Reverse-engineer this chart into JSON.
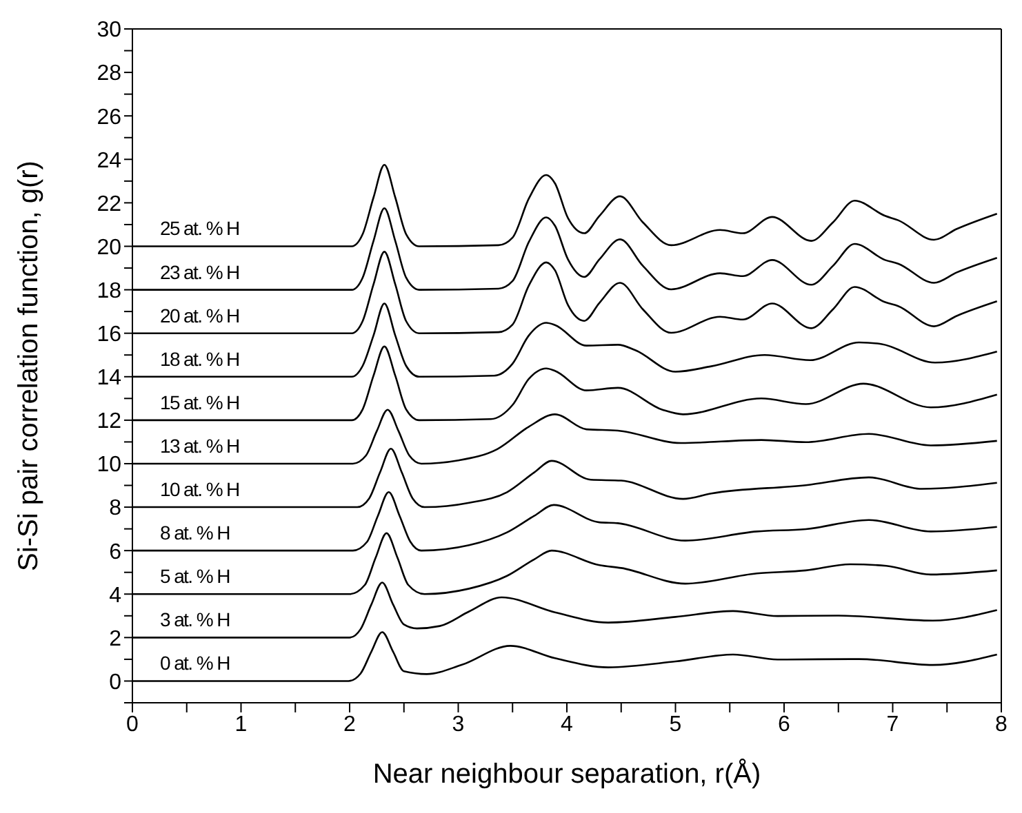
{
  "chart_data": {
    "type": "line",
    "xlabel": "Near neighbour separation, r(Å)",
    "ylabel": "Si-Si pair correlation function, g(r)",
    "xlim": [
      0,
      8
    ],
    "xticks": [
      0,
      {
        "value": 0.5,
        "label": null
      },
      1,
      {
        "value": 1.5,
        "label": null
      },
      2,
      {
        "value": 2.5,
        "label": null
      },
      3,
      {
        "value": 3.5,
        "label": null
      },
      4,
      {
        "value": 4.5,
        "label": null
      },
      5,
      {
        "value": 5.5,
        "label": null
      },
      6,
      {
        "value": 6.5,
        "label": null
      },
      7,
      {
        "value": 7.5,
        "label": null
      },
      8
    ],
    "ylim": [
      -1,
      30
    ],
    "yticks": [
      {
        "value": -1,
        "label": null
      },
      0,
      {
        "value": 1,
        "label": null
      },
      2,
      {
        "value": 3,
        "label": null
      },
      4,
      {
        "value": 5,
        "label": null
      },
      6,
      {
        "value": 7,
        "label": null
      },
      8,
      {
        "value": 9,
        "label": null
      },
      10,
      {
        "value": 11,
        "label": null
      },
      12,
      {
        "value": 13,
        "label": null
      },
      14,
      {
        "value": 15,
        "label": null
      },
      16,
      {
        "value": 17,
        "label": null
      },
      18,
      {
        "value": 19,
        "label": null
      },
      20,
      {
        "value": 21,
        "label": null
      },
      22,
      {
        "value": 23,
        "label": null
      },
      24,
      {
        "value": 25,
        "label": null
      },
      26,
      {
        "value": 27,
        "label": null
      },
      28,
      {
        "value": 29,
        "label": null
      },
      30
    ],
    "grid": false,
    "legend": false,
    "marker": "none",
    "line_style": "solid",
    "series": [
      {
        "name": "25 at. % H",
        "color": "#000000",
        "x": [
          0,
          2.02,
          2.12,
          2.22,
          2.32,
          2.42,
          2.52,
          2.64,
          3.37,
          3.5,
          3.65,
          3.81,
          3.89,
          4.01,
          4.16,
          4.3,
          4.49,
          4.7,
          4.96,
          5.41,
          5.62,
          5.89,
          6.25,
          6.45,
          6.65,
          6.93,
          7.05,
          7.38,
          7.59,
          7.96
        ],
        "values": [
          20,
          20,
          20.56,
          22.25,
          23.75,
          22.25,
          20.56,
          20,
          20.05,
          20.4,
          22.2,
          23.28,
          22.9,
          21.3,
          20.6,
          21.4,
          22.3,
          21.1,
          20.05,
          20.75,
          20.6,
          21.35,
          20.25,
          21.1,
          22.1,
          21.4,
          21.2,
          20.3,
          20.8,
          21.5
        ]
      },
      {
        "name": "23 at. % H",
        "color": "#000000",
        "x": [
          0,
          2.02,
          2.12,
          2.22,
          2.32,
          2.42,
          2.52,
          2.64,
          3.37,
          3.5,
          3.65,
          3.81,
          3.89,
          4.01,
          4.16,
          4.3,
          4.49,
          4.7,
          4.96,
          5.41,
          5.62,
          5.89,
          6.25,
          6.45,
          6.65,
          6.93,
          7.05,
          7.38,
          7.59,
          7.96
        ],
        "values": [
          18,
          18,
          18.56,
          20.25,
          21.75,
          20.25,
          18.56,
          18,
          18.05,
          18.4,
          20.2,
          21.33,
          20.95,
          19.4,
          18.59,
          19.4,
          20.32,
          19.1,
          18.02,
          18.76,
          18.63,
          19.37,
          18.23,
          19.1,
          20.11,
          19.37,
          19.2,
          18.32,
          18.8,
          19.47
        ]
      },
      {
        "name": "20 at. % H",
        "color": "#000000",
        "x": [
          0,
          2.02,
          2.12,
          2.22,
          2.32,
          2.42,
          2.52,
          2.64,
          3.37,
          3.5,
          3.65,
          3.81,
          3.89,
          4.01,
          4.16,
          4.3,
          4.49,
          4.7,
          4.96,
          5.41,
          5.62,
          5.89,
          6.25,
          6.45,
          6.65,
          6.93,
          7.05,
          7.38,
          7.59,
          7.96
        ],
        "values": [
          16,
          16,
          16.56,
          18.25,
          19.75,
          18.25,
          16.56,
          16,
          16.05,
          16.4,
          18.2,
          19.26,
          18.9,
          17.3,
          16.57,
          17.4,
          18.32,
          17.1,
          16.02,
          16.76,
          16.63,
          17.37,
          16.23,
          17.1,
          18.13,
          17.43,
          17.25,
          16.32,
          16.8,
          17.47
        ]
      },
      {
        "name": "18 at. % H",
        "color": "#000000",
        "x": [
          0,
          2.02,
          2.12,
          2.22,
          2.32,
          2.42,
          2.52,
          2.64,
          3.33,
          3.5,
          3.65,
          3.81,
          3.89,
          4.18,
          4.47,
          4.63,
          5.0,
          5.33,
          5.82,
          6.24,
          6.69,
          6.9,
          7.39,
          7.96
        ],
        "values": [
          14,
          14,
          14.5,
          15.9,
          17.37,
          15.9,
          14.5,
          14,
          14.05,
          14.6,
          15.9,
          16.48,
          16.38,
          15.43,
          15.47,
          15.22,
          14.23,
          14.48,
          15.0,
          14.76,
          15.58,
          15.5,
          14.65,
          15.16
        ]
      },
      {
        "name": "15 at. % H",
        "color": "#000000",
        "x": [
          0,
          2.02,
          2.12,
          2.22,
          2.32,
          2.42,
          2.52,
          2.64,
          3.3,
          3.5,
          3.65,
          3.81,
          3.89,
          4.18,
          4.47,
          4.88,
          5.07,
          5.79,
          6.2,
          6.73,
          7.35,
          7.96
        ],
        "values": [
          12,
          12,
          12.5,
          14.05,
          15.39,
          14.05,
          12.5,
          12,
          12.05,
          12.7,
          13.9,
          14.38,
          14.27,
          13.37,
          13.49,
          12.48,
          12.27,
          13.0,
          12.74,
          13.68,
          12.59,
          13.18
        ]
      },
      {
        "name": "13 at. % H",
        "color": "#000000",
        "x": [
          0,
          2.03,
          2.15,
          2.25,
          2.35,
          2.45,
          2.55,
          2.66,
          3.0,
          3.36,
          3.65,
          3.89,
          4.18,
          4.47,
          5.05,
          5.79,
          6.2,
          6.78,
          7.35,
          7.96
        ],
        "values": [
          10,
          10,
          10.37,
          11.5,
          12.48,
          11.5,
          10.37,
          10,
          10.15,
          10.67,
          11.7,
          12.27,
          11.58,
          11.52,
          10.95,
          11.09,
          10.99,
          11.37,
          10.84,
          11.05
        ]
      },
      {
        "name": "10 at. % H",
        "color": "#000000",
        "x": [
          0,
          2.07,
          2.18,
          2.28,
          2.38,
          2.48,
          2.58,
          2.69,
          3.1,
          3.45,
          3.7,
          3.86,
          4.22,
          4.5,
          5.07,
          5.33,
          6.2,
          6.78,
          7.27,
          7.96
        ],
        "values": [
          8,
          8,
          8.4,
          9.6,
          10.69,
          9.6,
          8.4,
          8,
          8.2,
          8.69,
          9.6,
          10.13,
          9.26,
          9.22,
          8.38,
          8.63,
          9.01,
          9.37,
          8.84,
          9.12
        ]
      },
      {
        "name": "8 at. % H",
        "color": "#000000",
        "x": [
          0,
          2.03,
          2.16,
          2.26,
          2.36,
          2.46,
          2.56,
          2.66,
          3.1,
          3.45,
          3.7,
          3.88,
          4.3,
          4.47,
          5.09,
          5.75,
          6.2,
          6.78,
          7.35,
          7.96
        ],
        "values": [
          6,
          6,
          6.4,
          7.6,
          8.69,
          7.6,
          6.4,
          6,
          6.25,
          6.84,
          7.6,
          8.1,
          7.3,
          7.26,
          6.46,
          6.88,
          6.99,
          7.41,
          6.88,
          7.09
        ]
      },
      {
        "name": "5 at. % H",
        "color": "#000000",
        "x": [
          0,
          2.0,
          2.14,
          2.24,
          2.34,
          2.44,
          2.54,
          2.69,
          3.1,
          3.45,
          3.7,
          3.86,
          4.3,
          4.5,
          5.09,
          5.75,
          6.2,
          6.61,
          6.94,
          7.35,
          7.96
        ],
        "values": [
          4,
          4,
          4.42,
          5.68,
          6.8,
          5.68,
          4.42,
          4,
          4.25,
          4.84,
          5.6,
          6.0,
          5.33,
          5.2,
          4.48,
          4.95,
          5.09,
          5.37,
          5.3,
          4.9,
          5.09
        ]
      },
      {
        "name": "3 at. % H",
        "color": "#000000",
        "x": [
          0,
          2.0,
          2.1,
          2.2,
          2.3,
          2.4,
          2.5,
          2.62,
          2.83,
          3.1,
          3.4,
          3.89,
          4.38,
          5.0,
          5.53,
          5.94,
          6.5,
          7.37,
          7.96
        ],
        "values": [
          2,
          2,
          2.38,
          3.52,
          4.53,
          3.52,
          2.6,
          2.42,
          2.53,
          3.2,
          3.85,
          3.16,
          2.69,
          2.95,
          3.22,
          2.99,
          3.01,
          2.78,
          3.26
        ]
      },
      {
        "name": "0 at. % H",
        "color": "#000000",
        "x": [
          0,
          1.99,
          2.1,
          2.2,
          2.3,
          2.4,
          2.5,
          2.71,
          3.03,
          3.48,
          3.89,
          4.38,
          5.0,
          5.53,
          5.94,
          6.69,
          7.37,
          7.96
        ],
        "values": [
          0,
          0,
          0.34,
          1.35,
          2.25,
          1.35,
          0.45,
          0.32,
          0.74,
          1.62,
          1.05,
          0.63,
          0.9,
          1.22,
          0.99,
          1.01,
          0.74,
          1.22
        ]
      }
    ]
  }
}
